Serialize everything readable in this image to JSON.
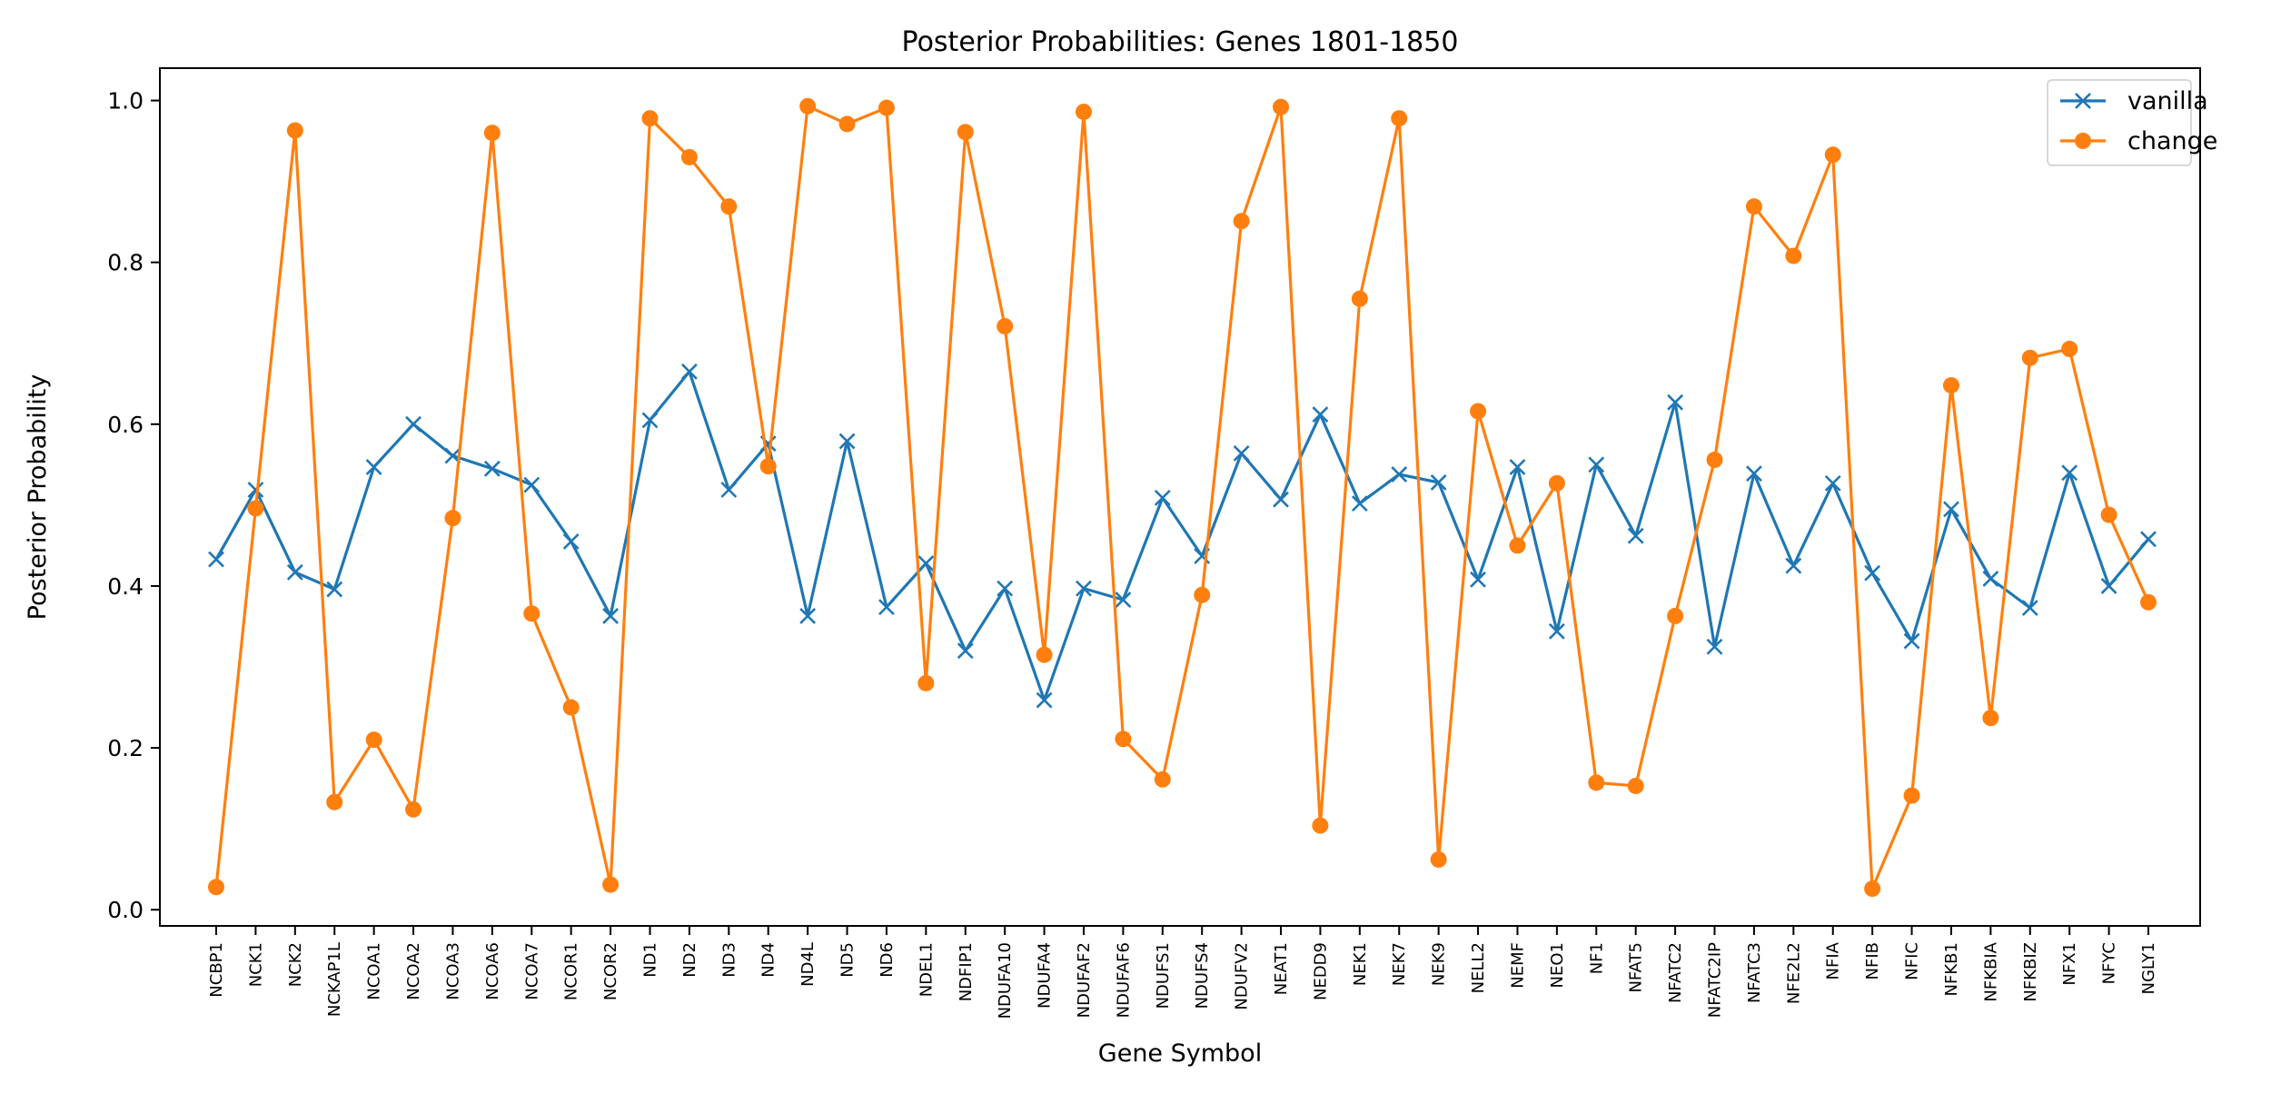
{
  "chart_data": {
    "type": "line",
    "title": "Posterior Probabilities: Genes 1801-1850",
    "xlabel": "Gene Symbol",
    "ylabel": "Posterior Probability",
    "ylim": [
      -0.02,
      1.04
    ],
    "yticks": [
      0.0,
      0.2,
      0.4,
      0.6,
      0.8,
      1.0
    ],
    "ytick_labels": [
      "0.0",
      "0.2",
      "0.4",
      "0.6",
      "0.8",
      "1.0"
    ],
    "grid": false,
    "legend_position": "top-right",
    "categories": [
      "NCBP1",
      "NCK1",
      "NCK2",
      "NCKAP1L",
      "NCOA1",
      "NCOA2",
      "NCOA3",
      "NCOA6",
      "NCOA7",
      "NCOR1",
      "NCOR2",
      "ND1",
      "ND2",
      "ND3",
      "ND4",
      "ND4L",
      "ND5",
      "ND6",
      "NDEL1",
      "NDFIP1",
      "NDUFA10",
      "NDUFA4",
      "NDUFAF2",
      "NDUFAF6",
      "NDUFS1",
      "NDUFS4",
      "NDUFV2",
      "NEAT1",
      "NEDD9",
      "NEK1",
      "NEK7",
      "NEK9",
      "NELL2",
      "NEMF",
      "NEO1",
      "NF1",
      "NFAT5",
      "NFATC2",
      "NFATC2IP",
      "NFATC3",
      "NFE2L2",
      "NFIA",
      "NFIB",
      "NFIC",
      "NFKB1",
      "NFKBIA",
      "NFKBIZ",
      "NFX1",
      "NFYC",
      "NGLY1"
    ],
    "series": [
      {
        "name": "vanilla",
        "color": "#1f77b4",
        "marker": "x",
        "values": [
          0.433,
          0.519,
          0.417,
          0.396,
          0.547,
          0.6,
          0.561,
          0.545,
          0.525,
          0.455,
          0.363,
          0.605,
          0.665,
          0.519,
          0.576,
          0.363,
          0.579,
          0.374,
          0.428,
          0.32,
          0.397,
          0.259,
          0.397,
          0.383,
          0.509,
          0.437,
          0.564,
          0.507,
          0.612,
          0.502,
          0.538,
          0.528,
          0.408,
          0.547,
          0.344,
          0.55,
          0.462,
          0.627,
          0.325,
          0.539,
          0.425,
          0.527,
          0.416,
          0.332,
          0.495,
          0.409,
          0.373,
          0.54,
          0.4,
          0.458
        ]
      },
      {
        "name": "change",
        "color": "#ff7f0e",
        "marker": "o",
        "values": [
          0.028,
          0.496,
          0.963,
          0.133,
          0.21,
          0.124,
          0.484,
          0.96,
          0.366,
          0.25,
          0.031,
          0.978,
          0.93,
          0.869,
          0.548,
          0.993,
          0.971,
          0.991,
          0.28,
          0.961,
          0.721,
          0.315,
          0.986,
          0.211,
          0.161,
          0.389,
          0.851,
          0.992,
          0.104,
          0.755,
          0.978,
          0.062,
          0.616,
          0.45,
          0.527,
          0.157,
          0.153,
          0.363,
          0.556,
          0.869,
          0.808,
          0.933,
          0.026,
          0.141,
          0.648,
          0.237,
          0.682,
          0.693,
          0.488,
          0.38
        ]
      }
    ]
  }
}
